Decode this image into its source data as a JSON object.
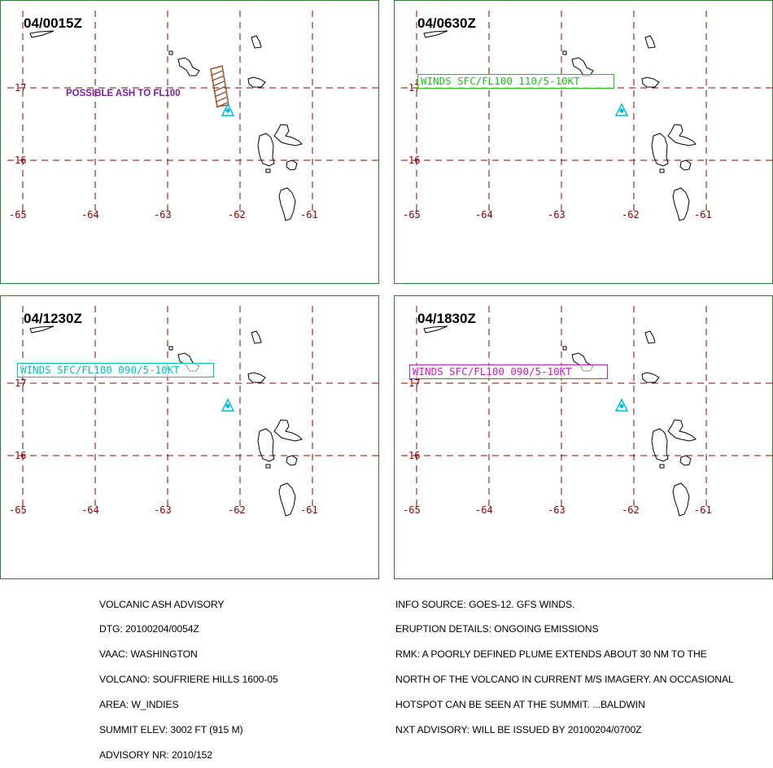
{
  "panels": [
    {
      "time": "04/0015Z",
      "ash_label": "POSSIBLE ASH TO FL100",
      "winds": null
    },
    {
      "time": "04/0630Z",
      "ash_label": null,
      "winds": {
        "text": "WINDS SFC/FL100 110/5-10KT",
        "color": "#20c020"
      }
    },
    {
      "time": "04/1230Z",
      "ash_label": null,
      "winds": {
        "text": "WINDS SFC/FL100 090/5-10KT",
        "color": "#00c0c0"
      }
    },
    {
      "time": "04/1830Z",
      "ash_label": null,
      "winds": {
        "text": "WINDS SFC/FL100 090/5-10KT",
        "color": "#c020c0"
      }
    }
  ],
  "map": {
    "lon_labels": [
      "-65",
      "-64",
      "-63",
      "-62",
      "-61"
    ],
    "lat_labels": [
      "17",
      "16"
    ],
    "grid_color": "#8b0000",
    "land_outline_color": "#000000",
    "volcano_icon": "volcano-triangle-icon",
    "volcano_color": "#00bcd4",
    "ash_color": "#a0522d",
    "frame_color": "#2e7d32"
  },
  "advisory_left": [
    "VOLCANIC ASH ADVISORY",
    "DTG: 20100204/0054Z",
    "VAAC: WASHINGTON",
    "VOLCANO: SOUFRIERE HILLS 1600-05",
    "AREA: W_INDIES",
    "SUMMIT ELEV: 3002 FT (915 M)",
    "ADVISORY NR: 2010/152"
  ],
  "advisory_right": [
    "INFO SOURCE: GOES-12. GFS WINDS.",
    "ERUPTION DETAILS: ONGOING EMISSIONS",
    "RMK: A POORLY DEFINED PLUME EXTENDS ABOUT 30 NM TO THE",
    "NORTH OF THE VOLCANO IN CURRENT M/S IMAGERY. AN OCCASIONAL",
    "HOTSPOT CAN BE SEEN AT THE SUMMIT. ...BALDWIN",
    "NXT ADVISORY: WILL BE ISSUED BY 20100204/0700Z"
  ]
}
